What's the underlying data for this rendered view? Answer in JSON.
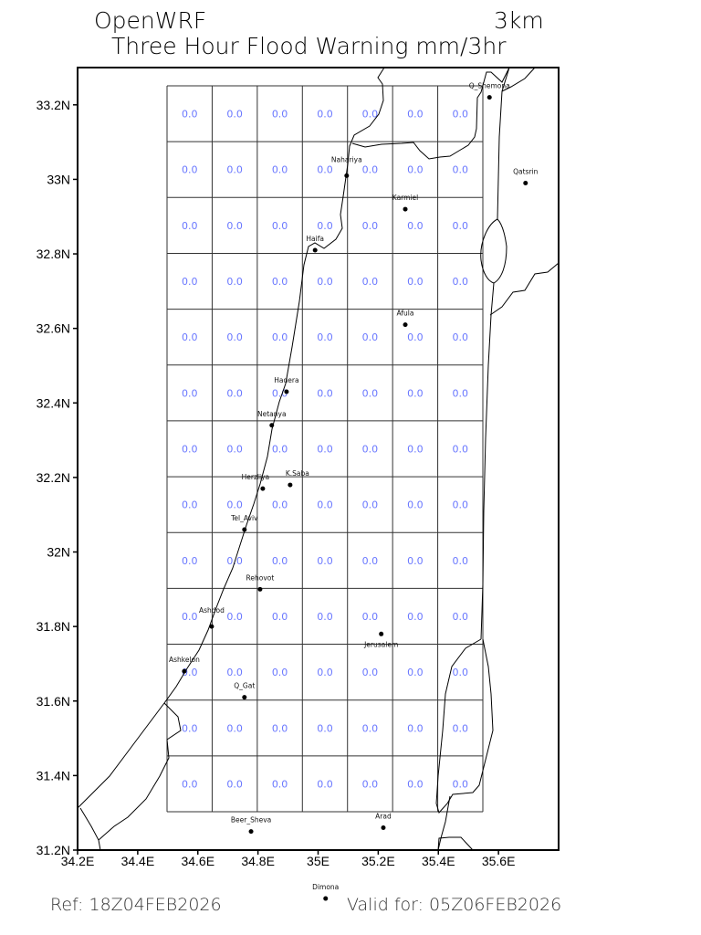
{
  "title": {
    "model": "OpenWRF",
    "resolution": "3km",
    "subtitle": "Three Hour Flood Warning mm/3hr"
  },
  "footer": {
    "ref": "Ref: 18Z04FEB2026",
    "valid": "Valid for: 05Z06FEB2026"
  },
  "axes": {
    "lon_range": [
      34.2,
      35.8
    ],
    "lat_range": [
      31.2,
      33.3
    ],
    "x_ticks": [
      {
        "v": 34.2,
        "label": "34.2E"
      },
      {
        "v": 34.4,
        "label": "34.4E"
      },
      {
        "v": 34.6,
        "label": "34.6E"
      },
      {
        "v": 34.8,
        "label": "34.8E"
      },
      {
        "v": 35.0,
        "label": "35E"
      },
      {
        "v": 35.2,
        "label": "35.2E"
      },
      {
        "v": 35.4,
        "label": "35.4E"
      },
      {
        "v": 35.6,
        "label": "35.6E"
      }
    ],
    "y_ticks": [
      {
        "v": 31.2,
        "label": "31.2N"
      },
      {
        "v": 31.4,
        "label": "31.4N"
      },
      {
        "v": 31.6,
        "label": "31.6N"
      },
      {
        "v": 31.8,
        "label": "31.8N"
      },
      {
        "v": 32.0,
        "label": "32N"
      },
      {
        "v": 32.2,
        "label": "32.2N"
      },
      {
        "v": 32.4,
        "label": "32.4N"
      },
      {
        "v": 32.6,
        "label": "32.6N"
      },
      {
        "v": 32.8,
        "label": "32.8N"
      },
      {
        "v": 33.0,
        "label": "33N"
      },
      {
        "v": 33.2,
        "label": "33.2N"
      }
    ]
  },
  "grid": {
    "value_color": "#6a78ff",
    "values": [
      [
        "0.0",
        "0.0",
        "0.0",
        "0.0",
        "0.0",
        "0.0",
        "0.0"
      ],
      [
        "0.0",
        "0.0",
        "0.0",
        "0.0",
        "0.0",
        "0.0",
        "0.0"
      ],
      [
        "0.0",
        "0.0",
        "0.0",
        "0.0",
        "0.0",
        "0.0",
        "0.0"
      ],
      [
        "0.0",
        "0.0",
        "0.0",
        "0.0",
        "0.0",
        "0.0",
        "0.0"
      ],
      [
        "0.0",
        "0.0",
        "0.0",
        "0.0",
        "0.0",
        "0.0",
        "0.0"
      ],
      [
        "0.0",
        "0.0",
        "0.0",
        "0.0",
        "0.0",
        "0.0",
        "0.0"
      ],
      [
        "0.0",
        "0.0",
        "0.0",
        "0.0",
        "0.0",
        "0.0",
        "0.0"
      ],
      [
        "0.0",
        "0.0",
        "0.0",
        "0.0",
        "0.0",
        "0.0",
        "0.0"
      ],
      [
        "0.0",
        "0.0",
        "0.0",
        "0.0",
        "0.0",
        "0.0",
        "0.0"
      ],
      [
        "0.0",
        "0.0",
        "0.0",
        "0.0",
        "0.0",
        "0.0",
        "0.0"
      ],
      [
        "0.0",
        "0.0",
        "0.0",
        "0.0",
        "0.0",
        "0.0",
        "0.0"
      ],
      [
        "0.0",
        "0.0",
        "0.0",
        "0.0",
        "0.0",
        "0.0",
        "0.0"
      ],
      [
        "0.0",
        "0.0",
        "0.0",
        "0.0",
        "0.0",
        "0.0",
        "0.0"
      ]
    ]
  },
  "cities": [
    {
      "name": "Q_Shemona",
      "lon": 35.57,
      "lat": 33.22
    },
    {
      "name": "Qatsrin",
      "lon": 35.69,
      "lat": 32.99
    },
    {
      "name": "Nahariya",
      "lon": 35.095,
      "lat": 33.01
    },
    {
      "name": "Karmiel",
      "lon": 35.29,
      "lat": 32.92
    },
    {
      "name": "Haifa",
      "lon": 34.99,
      "lat": 32.81
    },
    {
      "name": "Afula",
      "lon": 35.29,
      "lat": 32.61
    },
    {
      "name": "Hadera",
      "lon": 34.895,
      "lat": 32.43
    },
    {
      "name": "Netanya",
      "lon": 34.846,
      "lat": 32.34
    },
    {
      "name": "Herzliya",
      "lon": 34.816,
      "lat": 32.17
    },
    {
      "name": "K.Saba",
      "lon": 34.907,
      "lat": 32.18
    },
    {
      "name": "Tel_Aviv",
      "lon": 34.755,
      "lat": 32.06
    },
    {
      "name": "Rehovot",
      "lon": 34.807,
      "lat": 31.9
    },
    {
      "name": "Ashdod",
      "lon": 34.646,
      "lat": 31.8
    },
    {
      "name": "Jerusalem",
      "lon": 35.21,
      "lat": 31.78
    },
    {
      "name": "Ashkelon",
      "lon": 34.555,
      "lat": 31.68
    },
    {
      "name": "Q_Gat",
      "lon": 34.755,
      "lat": 31.61
    },
    {
      "name": "Beer_Sheva",
      "lon": 34.777,
      "lat": 31.25
    },
    {
      "name": "Arad",
      "lon": 35.217,
      "lat": 31.26
    },
    {
      "name": "Dimona",
      "lon": 35.025,
      "lat": 31.07
    }
  ]
}
